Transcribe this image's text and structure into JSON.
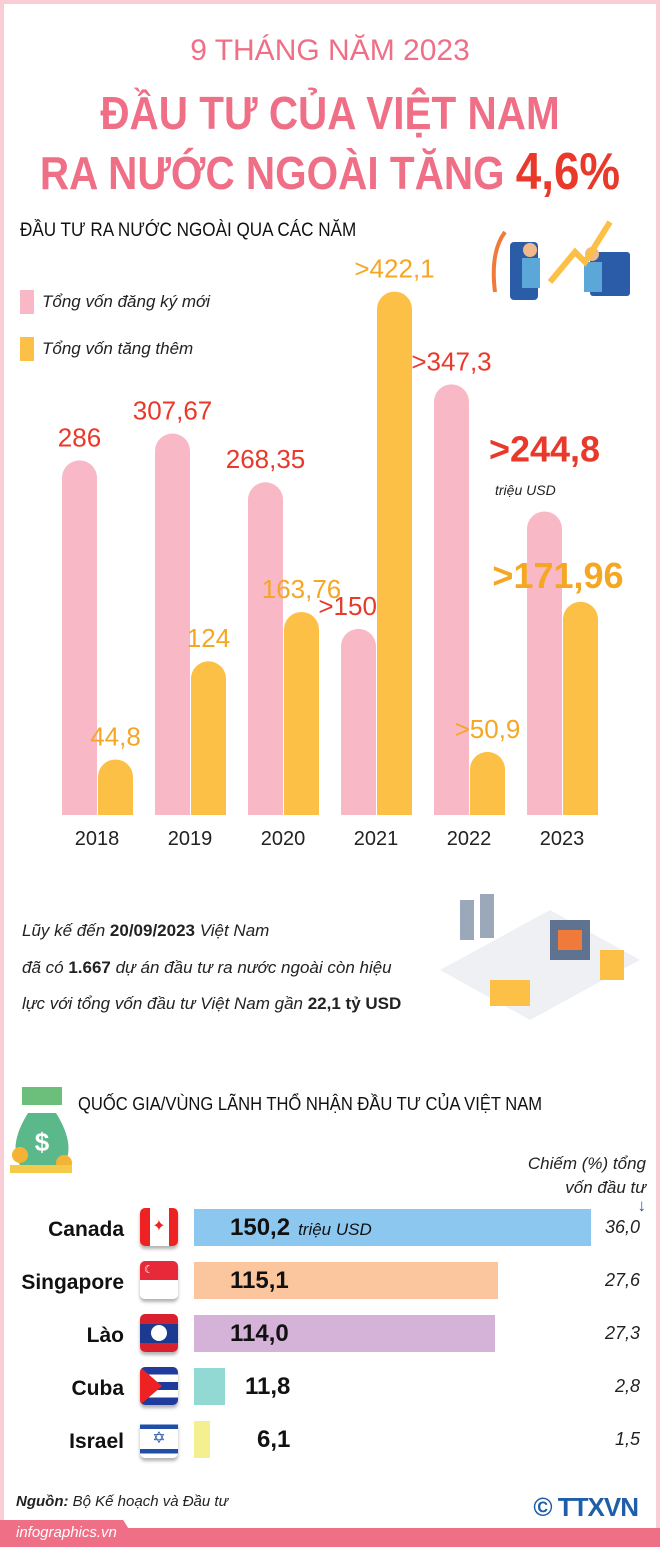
{
  "header": {
    "kicker": "9 THÁNG NĂM 2023",
    "title_line1": "ĐẦU TƯ CỦA VIỆT NAM",
    "title_line2": "RA NƯỚC NGOÀI TĂNG",
    "highlight": "4,6%"
  },
  "chart_data": {
    "type": "bar",
    "title": "ĐẦU TƯ RA NƯỚC NGOÀI QUA CÁC NĂM",
    "categories": [
      "2018",
      "2019",
      "2020",
      "2021",
      "2022",
      "2023"
    ],
    "series": [
      {
        "name": "Tổng vốn đăng ký mới",
        "color": "#f9b8c6",
        "values": [
          286,
          307.67,
          268.35,
          150.1,
          347.3,
          244.8
        ],
        "labels": [
          "286",
          "307,67",
          "268,35",
          ">150,1",
          ">347,3",
          ">244,8"
        ]
      },
      {
        "name": "Tổng vốn tăng thêm",
        "color": "#fcc046",
        "values": [
          44.8,
          124,
          163.76,
          422.1,
          50.9,
          171.96
        ],
        "labels": [
          "44,8",
          "124",
          "163,76",
          ">422,1",
          ">50,9",
          ">171,96"
        ]
      }
    ],
    "unit_note": "triệu USD",
    "legend_position": "top-left"
  },
  "summary": {
    "line1_pre": "Lũy kế đến ",
    "date": "20/09/2023",
    "line1_post": " Việt Nam",
    "line2_pre": "đã có ",
    "projects": "1.667",
    "line2_post": " dự án đầu tư ra nước ngoài còn hiệu",
    "line3_pre": "lực với tổng vốn đầu tư Việt Nam gần ",
    "total": "22,1 tỷ USD"
  },
  "countries": {
    "title": "QUỐC GIA/VÙNG LÃNH THỔ NHẬN ĐẦU TƯ CỦA VIỆT NAM",
    "pct_header_1": "Chiếm (%) tổng",
    "pct_header_2": "vốn đầu tư",
    "unit": "triệu USD",
    "rows": [
      {
        "name": "Canada",
        "value": 150.2,
        "label": "150,2",
        "pct": "36,0",
        "color": "#8cc7f0"
      },
      {
        "name": "Singapore",
        "value": 115.1,
        "label": "115,1",
        "pct": "27,6",
        "color": "#fbc59d"
      },
      {
        "name": "Lào",
        "value": 114.0,
        "label": "114,0",
        "pct": "27,3",
        "color": "#d5b3d8"
      },
      {
        "name": "Cuba",
        "value": 11.8,
        "label": "11,8",
        "pct": "2,8",
        "color": "#93d9d3"
      },
      {
        "name": "Israel",
        "value": 6.1,
        "label": "6,1",
        "pct": "1,5",
        "color": "#f4ef8f"
      }
    ]
  },
  "footer": {
    "source_label": "Nguồn:",
    "source": " Bộ Kế hoạch và Đầu tư",
    "site": "infographics.vn",
    "logo": "© TTXVN"
  }
}
